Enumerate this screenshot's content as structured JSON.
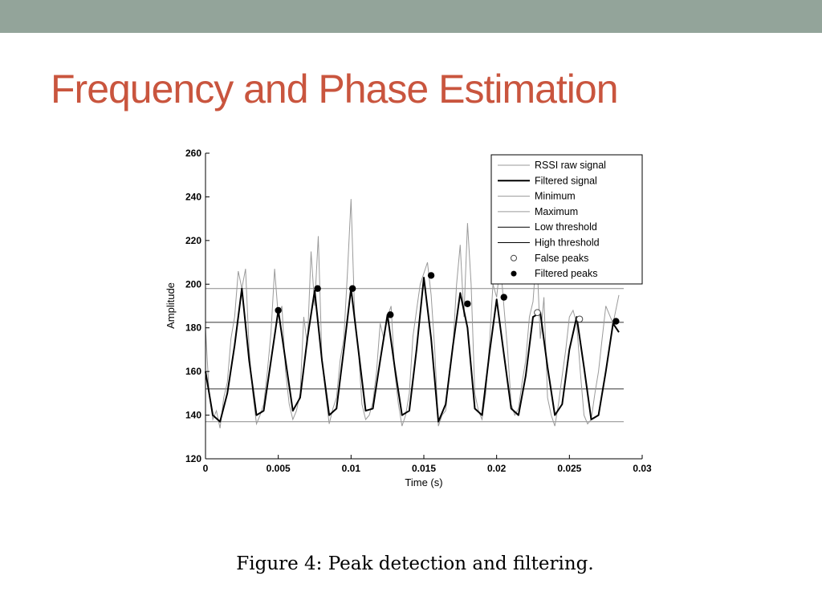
{
  "slide": {
    "title": "Frequency and Phase Estimation",
    "caption": "Figure 4:  Peak detection and filtering.",
    "title_color": "#c9553e",
    "top_bar_color": "#93a49a"
  },
  "chart_data": {
    "type": "line",
    "title": "",
    "xlabel": "Time (s)",
    "ylabel": "Amplitude",
    "xlim": [
      0,
      0.03
    ],
    "ylim": [
      120,
      260
    ],
    "xticks": [
      0,
      0.005,
      0.01,
      0.015,
      0.02,
      0.025,
      0.03
    ],
    "xtick_labels": [
      "0",
      "0.005",
      "0.01",
      "0.015",
      "0.02",
      "0.025",
      "0.03"
    ],
    "yticks": [
      120,
      140,
      160,
      180,
      200,
      220,
      240,
      260
    ],
    "ytick_labels": [
      "120",
      "140",
      "160",
      "180",
      "200",
      "220",
      "240",
      "260"
    ],
    "grid": false,
    "legend_position": "top-right",
    "legend": [
      {
        "label": "RSSI raw signal",
        "style": "thin-gray-line"
      },
      {
        "label": "Filtered signal",
        "style": "thick-black-line"
      },
      {
        "label": "Minimum",
        "style": "thin-gray-line"
      },
      {
        "label": "Maximum",
        "style": "thin-gray-line"
      },
      {
        "label": "Low threshold",
        "style": "thin-dark-line"
      },
      {
        "label": "High threshold",
        "style": "thin-dark-line"
      },
      {
        "label": "False peaks",
        "style": "open-circle"
      },
      {
        "label": "Filtered peaks",
        "style": "filled-circle"
      }
    ],
    "horizontal_lines": {
      "minimum": 137,
      "maximum": 198,
      "low_threshold": 152,
      "high_threshold": 182.5
    },
    "filtered_signal": {
      "x": [
        0,
        0.0005,
        0.001,
        0.0015,
        0.002,
        0.0025,
        0.003,
        0.0035,
        0.004,
        0.0045,
        0.005,
        0.0055,
        0.006,
        0.0065,
        0.007,
        0.0075,
        0.008,
        0.0085,
        0.009,
        0.0095,
        0.01,
        0.0105,
        0.011,
        0.0115,
        0.012,
        0.0125,
        0.013,
        0.0135,
        0.014,
        0.0145,
        0.015,
        0.0155,
        0.016,
        0.0165,
        0.017,
        0.0175,
        0.018,
        0.0185,
        0.019,
        0.0195,
        0.02,
        0.0205,
        0.021,
        0.0215,
        0.022,
        0.0225,
        0.023,
        0.0235,
        0.024,
        0.0245,
        0.025,
        0.0255,
        0.026,
        0.0265,
        0.027,
        0.0275,
        0.028,
        0.0284
      ],
      "y": [
        160,
        140,
        137,
        150,
        172,
        198,
        165,
        140,
        142,
        165,
        188,
        165,
        142,
        148,
        175,
        197,
        165,
        140,
        143,
        170,
        198,
        170,
        142,
        143,
        165,
        186,
        162,
        140,
        142,
        170,
        203,
        175,
        137,
        145,
        172,
        196,
        180,
        143,
        140,
        168,
        193,
        168,
        143,
        140,
        158,
        185,
        187,
        162,
        140,
        145,
        170,
        185,
        162,
        138,
        140,
        160,
        182,
        178
      ]
    },
    "raw_signal": {
      "x": [
        0,
        0.00025,
        0.0005,
        0.00075,
        0.001,
        0.00125,
        0.0015,
        0.00175,
        0.002,
        0.00225,
        0.0025,
        0.00275,
        0.003,
        0.00325,
        0.0035,
        0.00375,
        0.004,
        0.00425,
        0.0045,
        0.00475,
        0.005,
        0.00525,
        0.0055,
        0.00575,
        0.006,
        0.00625,
        0.0065,
        0.00675,
        0.007,
        0.00725,
        0.0075,
        0.00775,
        0.008,
        0.00825,
        0.0085,
        0.00875,
        0.009,
        0.00925,
        0.0095,
        0.00975,
        0.01,
        0.01025,
        0.0105,
        0.01075,
        0.011,
        0.01125,
        0.0115,
        0.01175,
        0.012,
        0.01225,
        0.0125,
        0.01275,
        0.013,
        0.01325,
        0.0135,
        0.01375,
        0.014,
        0.01425,
        0.0145,
        0.01475,
        0.015,
        0.01525,
        0.0155,
        0.01575,
        0.016,
        0.01625,
        0.0165,
        0.01675,
        0.017,
        0.01725,
        0.0175,
        0.01775,
        0.018,
        0.01825,
        0.0185,
        0.01875,
        0.019,
        0.01925,
        0.0195,
        0.01975,
        0.02,
        0.02025,
        0.0205,
        0.02075,
        0.021,
        0.02125,
        0.0215,
        0.02175,
        0.022,
        0.02225,
        0.0225,
        0.02275,
        0.023,
        0.02325,
        0.0235,
        0.02375,
        0.024,
        0.02425,
        0.0245,
        0.02475,
        0.025,
        0.02525,
        0.0255,
        0.02575,
        0.026,
        0.02625,
        0.0265,
        0.02675,
        0.027,
        0.02725,
        0.0275,
        0.02775,
        0.028,
        0.0284
      ],
      "y": [
        180,
        150,
        138,
        142,
        134,
        148,
        155,
        175,
        185,
        206,
        198,
        207,
        170,
        150,
        136,
        140,
        145,
        160,
        178,
        207,
        185,
        190,
        160,
        145,
        138,
        142,
        150,
        185,
        172,
        215,
        190,
        222,
        165,
        150,
        136,
        143,
        148,
        165,
        175,
        205,
        239,
        185,
        170,
        145,
        138,
        140,
        146,
        160,
        182,
        175,
        185,
        190,
        160,
        145,
        135,
        140,
        150,
        176,
        188,
        200,
        205,
        210,
        195,
        170,
        135,
        140,
        142,
        160,
        172,
        200,
        218,
        185,
        228,
        200,
        150,
        142,
        138,
        150,
        172,
        200,
        194,
        210,
        190,
        170,
        145,
        140,
        143,
        155,
        165,
        185,
        192,
        215,
        175,
        194,
        148,
        140,
        135,
        145,
        158,
        170,
        185,
        188,
        182,
        160,
        140,
        136,
        138,
        150,
        160,
        175,
        190,
        186,
        182,
        195
      ]
    },
    "filtered_peaks": {
      "x": [
        0.005,
        0.0077,
        0.0101,
        0.0127,
        0.0155,
        0.018,
        0.0205,
        0.0282
      ],
      "y": [
        188,
        198,
        198,
        186,
        204,
        191,
        194,
        183
      ]
    },
    "false_peaks": {
      "x": [
        0.0228,
        0.0257
      ],
      "y": [
        187,
        184
      ]
    }
  }
}
